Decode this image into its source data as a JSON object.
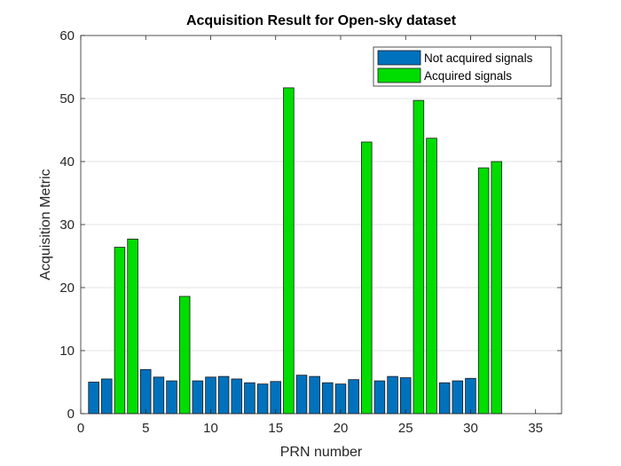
{
  "chart_data": {
    "type": "bar",
    "title": "Acquisition Result for Open-sky dataset",
    "xlabel": "PRN number",
    "ylabel": "Acquisition Metric",
    "xlim": [
      0,
      37
    ],
    "ylim": [
      0,
      60
    ],
    "xticks": [
      0,
      5,
      10,
      15,
      20,
      25,
      30,
      35
    ],
    "yticks": [
      0,
      10,
      20,
      30,
      40,
      50,
      60
    ],
    "grid": "y",
    "legend_position": "top-right",
    "colors": {
      "not_acquired": "#0072BD",
      "acquired": "#00DD00",
      "bar_edge": "#1a1a1a",
      "grid": "#e6e6e6",
      "axis": "#262626"
    },
    "series": [
      {
        "name": "Not acquired signals",
        "x": [
          1,
          2,
          5,
          6,
          7,
          9,
          10,
          11,
          12,
          13,
          14,
          15,
          17,
          18,
          19,
          20,
          21,
          23,
          24,
          25,
          28,
          29,
          30
        ],
        "values": [
          5.0,
          5.5,
          7.0,
          5.8,
          5.2,
          5.2,
          5.8,
          5.9,
          5.5,
          4.9,
          4.7,
          5.1,
          6.1,
          5.9,
          4.9,
          4.7,
          5.4,
          5.2,
          5.9,
          5.7,
          4.9,
          5.2,
          5.6
        ]
      },
      {
        "name": "Acquired signals",
        "x": [
          3,
          4,
          8,
          16,
          22,
          26,
          27,
          31,
          32
        ],
        "values": [
          26.4,
          27.7,
          18.6,
          51.7,
          43.1,
          49.7,
          43.7,
          39.0,
          40.0
        ]
      }
    ]
  }
}
